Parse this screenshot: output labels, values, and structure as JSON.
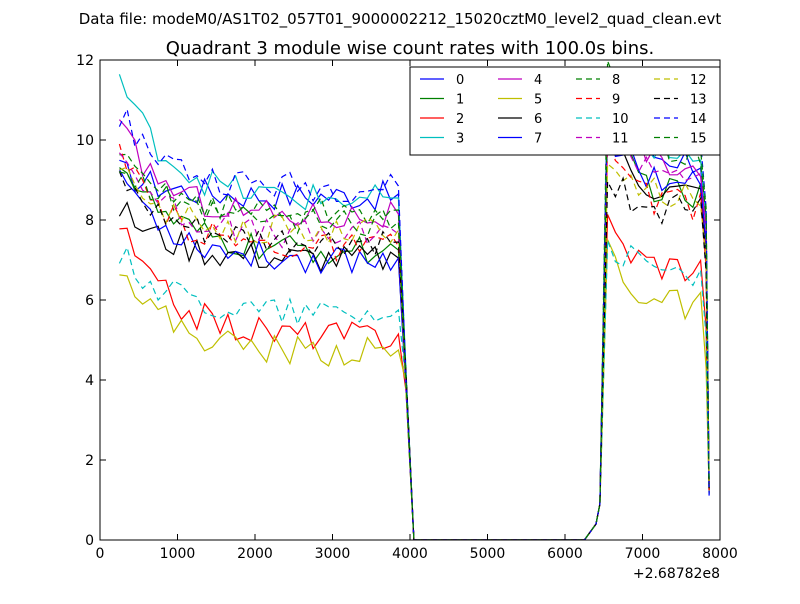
{
  "chart_data": {
    "type": "line",
    "suptitle": "Data file: modeM0/AS1T02_057T01_9000002212_15020cztM0_level2_quad_clean.evt",
    "title": "Quadrant 3 module wise count rates with 100.0s bins.",
    "xlabel": "",
    "ylabel": "",
    "x_offset_label": "+2.68782e8",
    "xlim": [
      0,
      8000
    ],
    "ylim": [
      0,
      12
    ],
    "xticks": [
      0,
      1000,
      2000,
      3000,
      4000,
      5000,
      6000,
      7000,
      8000
    ],
    "yticks": [
      0,
      2,
      4,
      6,
      8,
      10,
      12
    ],
    "grid": false,
    "legend_position": "top-right",
    "legend_columns": 4,
    "x_spans": [
      {
        "start": 250,
        "end": 3850,
        "step": 100
      },
      {
        "start": 6350,
        "end": 7850,
        "step": 100
      }
    ],
    "gap": [
      4000,
      6300
    ],
    "series": [
      {
        "name": "0",
        "color": "#0000ff",
        "style": "solid",
        "base1": 8.6,
        "base2": 9.5,
        "start1": 9.2,
        "start2": 10.6
      },
      {
        "name": "1",
        "color": "#008000",
        "style": "solid",
        "base1": 7.2,
        "base2": 8.5,
        "start1": 9.6,
        "start2": 11.0
      },
      {
        "name": "2",
        "color": "#ff0000",
        "style": "solid",
        "base1": 5.1,
        "base2": 6.8,
        "start1": 7.9,
        "start2": 7.9
      },
      {
        "name": "3",
        "color": "#00bfbf",
        "style": "solid",
        "base1": 8.5,
        "base2": 9.5,
        "start1": 11.6,
        "start2": 11.2
      },
      {
        "name": "4",
        "color": "#bf00bf",
        "style": "solid",
        "base1": 8.1,
        "base2": 9.3,
        "start1": 10.3,
        "start2": 10.7
      },
      {
        "name": "5",
        "color": "#bfbf00",
        "style": "solid",
        "base1": 4.7,
        "base2": 5.8,
        "start1": 7.0,
        "start2": 7.4
      },
      {
        "name": "6",
        "color": "#000000",
        "style": "solid",
        "base1": 7.0,
        "base2": 8.6,
        "start1": 8.3,
        "start2": 10.2
      },
      {
        "name": "7",
        "color": "#0000ff",
        "style": "solid",
        "base1": 7.0,
        "base2": 8.9,
        "start1": 9.3,
        "start2": 10.4
      },
      {
        "name": "8",
        "color": "#008000",
        "style": "dashed",
        "base1": 8.2,
        "base2": 9.6,
        "start1": 9.5,
        "start2": 12.0
      },
      {
        "name": "9",
        "color": "#ff0000",
        "style": "dashed",
        "base1": 7.3,
        "base2": 8.3,
        "start1": 9.6,
        "start2": 10.1
      },
      {
        "name": "10",
        "color": "#00bfbf",
        "style": "dashed",
        "base1": 5.7,
        "base2": 6.6,
        "start1": 7.2,
        "start2": 7.6
      },
      {
        "name": "11",
        "color": "#bf00bf",
        "style": "dashed",
        "base1": 7.6,
        "base2": 9.2,
        "start1": 9.8,
        "start2": 10.6
      },
      {
        "name": "12",
        "color": "#bfbf00",
        "style": "dashed",
        "base1": 7.7,
        "base2": 8.6,
        "start1": 9.2,
        "start2": 9.6
      },
      {
        "name": "13",
        "color": "#000000",
        "style": "dashed",
        "base1": 7.4,
        "base2": 8.2,
        "start1": 9.0,
        "start2": 9.2
      },
      {
        "name": "14",
        "color": "#0000ff",
        "style": "dashed",
        "base1": 8.8,
        "base2": 9.8,
        "start1": 10.7,
        "start2": 11.5
      },
      {
        "name": "15",
        "color": "#008000",
        "style": "dashed",
        "base1": 7.9,
        "base2": 9.8,
        "start1": 9.4,
        "start2": 11.2
      }
    ]
  }
}
